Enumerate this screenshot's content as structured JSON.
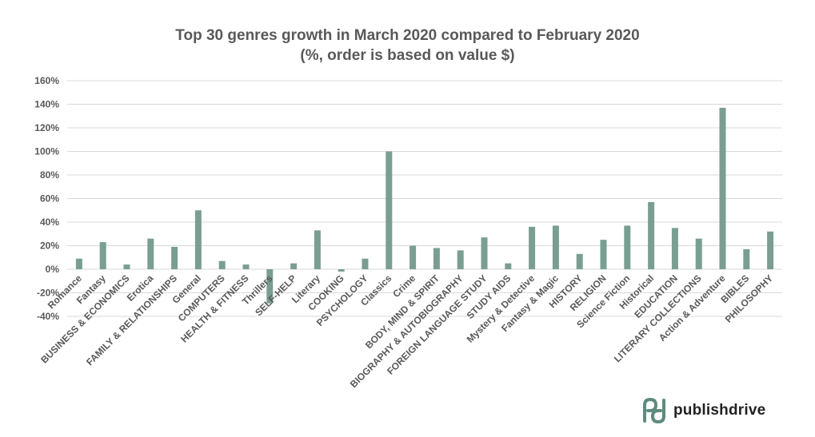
{
  "chart_data": {
    "type": "bar",
    "title_line1": "Top 30 genres growth in March 2020 compared to February 2020",
    "title_line2": "(%, order is based on value $)",
    "categories": [
      "Romance",
      "Fantasy",
      "BUSINESS & ECONOMICS",
      "Erotica",
      "FAMILY & RELATIONSHIPS",
      "General",
      "COMPUTERS",
      "HEALTH & FITNESS",
      "Thrillers",
      "SELF-HELP",
      "Literary",
      "COOKING",
      "PSYCHOLOGY",
      "Classics",
      "Crime",
      "BODY, MIND & SPIRIT",
      "BIOGRAPHY & AUTOBIOGRAPHY",
      "FOREIGN LANGUAGE STUDY",
      "STUDY AIDS",
      "Mystery & Detective",
      "Fantasy & Magic",
      "HISTORY",
      "RELIGION",
      "Science Fiction",
      "Historical",
      "EDUCATION",
      "LITERARY COLLECTIONS",
      "Action & Adventure",
      "BIBLES",
      "PHILOSOPHY"
    ],
    "values": [
      9,
      23,
      4,
      26,
      19,
      50,
      7,
      4,
      -29,
      5,
      33,
      -2,
      9,
      100,
      20,
      18,
      16,
      27,
      5,
      36,
      37,
      13,
      25,
      37,
      57,
      35,
      26,
      137,
      17,
      32
    ],
    "ylim": [
      -40,
      160
    ],
    "yticks": [
      -40,
      -20,
      0,
      20,
      40,
      60,
      80,
      100,
      120,
      140,
      160
    ],
    "ytick_format": "%",
    "grid": true,
    "legend": "none",
    "bar_color": "#7a9e92"
  },
  "logo": {
    "text": "publishdrive",
    "color": "#5e8b7e"
  }
}
